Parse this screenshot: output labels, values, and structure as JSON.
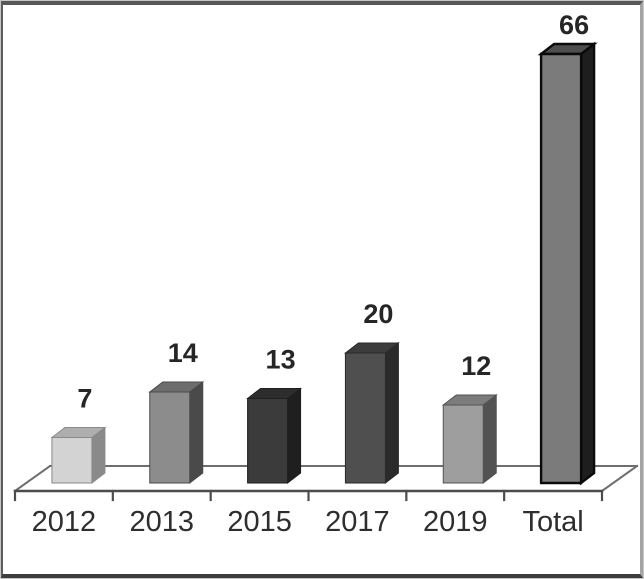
{
  "chart_data": {
    "type": "bar",
    "style": "3d-perspective",
    "title": "",
    "xlabel": "",
    "ylabel": "",
    "categories": [
      "2012",
      "2013",
      "2015",
      "2017",
      "2019",
      "Total"
    ],
    "values": [
      7,
      14,
      13,
      20,
      12,
      66
    ],
    "data_labels": [
      "7",
      "14",
      "13",
      "20",
      "12",
      "66"
    ],
    "ylim": [
      0,
      70
    ],
    "gridlines": false,
    "legend": false,
    "background_color": "#ffffff",
    "axis_color": "#4c4c4c",
    "floor_line_color": "#6e6e6e",
    "value_label_color": "#262626",
    "category_label_color": "#2e2e2e",
    "bar_colors": [
      {
        "front": "#d3d3d3",
        "top": "#aeaeae",
        "side": "#8a8a8a",
        "outline": "#8a8a8a"
      },
      {
        "front": "#8c8c8c",
        "top": "#6d6d6d",
        "side": "#4a4a4a",
        "outline": "#4a4a4a"
      },
      {
        "front": "#3b3b3b",
        "top": "#2d2d2d",
        "side": "#1f1f1f",
        "outline": "#1f1f1f"
      },
      {
        "front": "#4f4f4f",
        "top": "#3c3c3c",
        "side": "#2a2a2a",
        "outline": "#2a2a2a"
      },
      {
        "front": "#9e9e9e",
        "top": "#7c7c7c",
        "side": "#525252",
        "outline": "#525252"
      },
      {
        "front": "#7b7b7b",
        "top": "#4e4e4e",
        "side": "#1e1e1e",
        "outline": "#0a0a0a"
      }
    ]
  }
}
